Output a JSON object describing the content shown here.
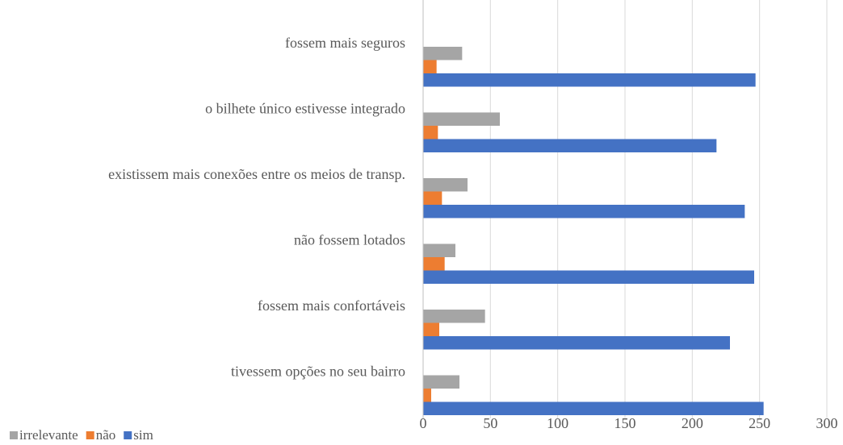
{
  "chart_data": {
    "type": "bar",
    "orientation": "horizontal",
    "categories": [
      "fossem mais seguros",
      "o bilhete único estivesse integrado",
      "existissem mais conexões entre os meios de transp.",
      "não fossem lotados",
      "fossem mais confortáveis",
      "tivessem opções no seu bairro"
    ],
    "series": [
      {
        "name": "irrelevante",
        "color": "#a5a5a5",
        "values": [
          29,
          57,
          33,
          24,
          46,
          27
        ]
      },
      {
        "name": "não",
        "color": "#ed7d31",
        "values": [
          10,
          11,
          14,
          16,
          12,
          6
        ]
      },
      {
        "name": "sim",
        "color": "#4472c4",
        "values": [
          247,
          218,
          239,
          246,
          228,
          253
        ]
      }
    ],
    "xlim": [
      0,
      300
    ],
    "xticks": [
      0,
      50,
      100,
      150,
      200,
      250,
      300
    ],
    "grid": true,
    "legend": "bottom-left"
  }
}
